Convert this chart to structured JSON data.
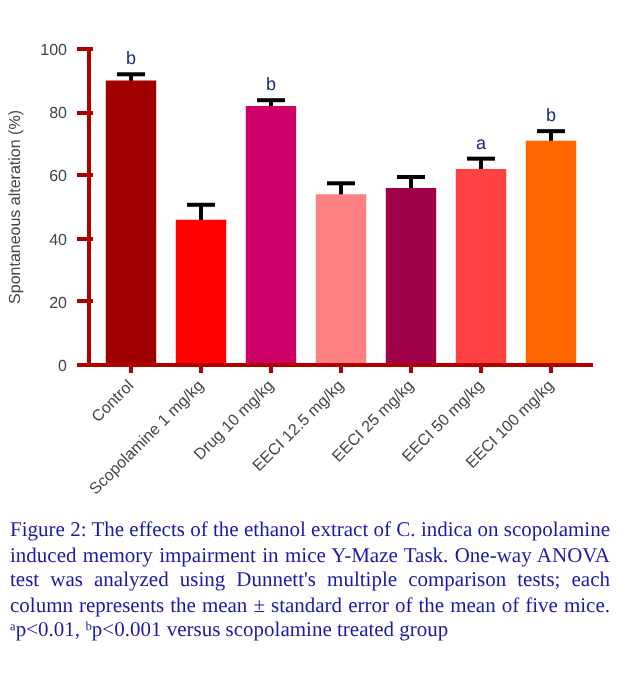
{
  "chart_data": {
    "type": "bar",
    "ylabel": "Spontaneous alteration (%)",
    "categories": [
      "Control",
      "Scopolamine 1 mg/kg",
      "Drug 10 mg/kg",
      "EECI 12.5 mg/kg",
      "EECI 25 mg/kg",
      "EECI 50 mg/kg",
      "EECI 100 mg/kg"
    ],
    "values": [
      90,
      46,
      82,
      54,
      56,
      62,
      71
    ],
    "errors": [
      2,
      4.7,
      1.8,
      3.5,
      3.5,
      3.3,
      3
    ],
    "colors": [
      "#a00000",
      "#ff0000",
      "#cc0066",
      "#ff8080",
      "#a0004a",
      "#ff4040",
      "#ff6600"
    ],
    "ylim": [
      0,
      100
    ],
    "yticks": [
      0,
      20,
      40,
      60,
      80,
      100
    ],
    "grid": false,
    "annotations": [
      {
        "text": "b",
        "x": "Control",
        "y": 90
      },
      {
        "text": "b",
        "x": "Drug 10 mg/kg",
        "y": 82
      },
      {
        "text": "a",
        "x": "EECI 50 mg/kg",
        "y": 62
      },
      {
        "text": "b",
        "x": "EECI 100 mg/kg",
        "y": 71
      },
      "Figure 2: The effects of the ethanol extract of C. indica on scopolamine induced memory impairment in mice Y-Maze Task. One-way ANOVA test was analyzed using Dunnett's multiple comparison tests; each column represents the mean ± standard error of the mean of five mice. ᵃp<0.01, ᵇp<0.001 versus scopolamine treated group"
    ]
  }
}
